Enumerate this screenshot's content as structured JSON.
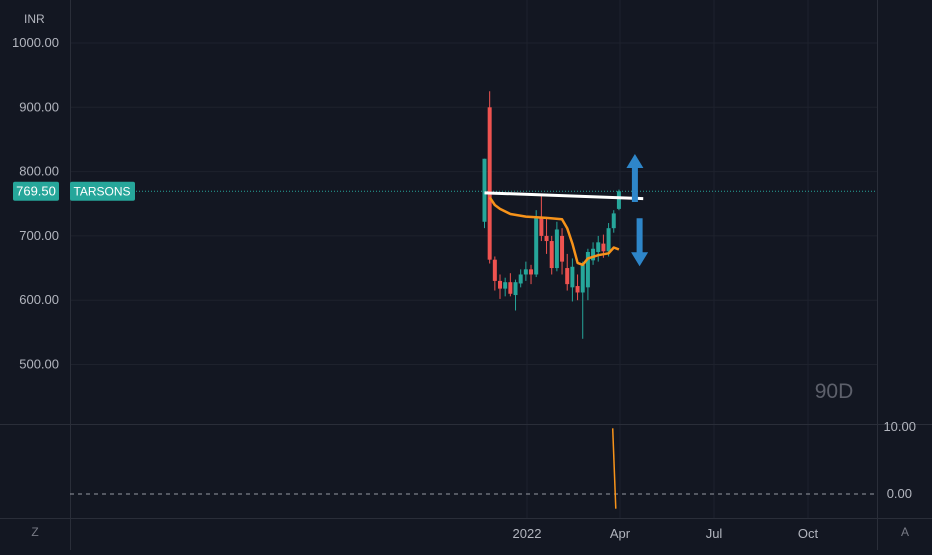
{
  "currency_label": "INR",
  "price_axis": {
    "ticks": [
      "1000.00",
      "900.00",
      "800.00",
      "700.00",
      "600.00",
      "500.00"
    ]
  },
  "last_price": {
    "value_text": "769.50",
    "value": 769.5,
    "symbol": "TARSONS",
    "color": "#26a69a"
  },
  "interval_watermark": "90D",
  "time_axis": {
    "ticks": [
      "2022",
      "Apr",
      "Jul",
      "Oct"
    ]
  },
  "indicator_axis": {
    "ticks": [
      "10.00",
      "0.00"
    ]
  },
  "corner_buttons": {
    "left": "Z",
    "right": "A"
  },
  "colors": {
    "background": "#131722",
    "grid": "#1e222d",
    "up": "#26a69a",
    "down": "#ef5350",
    "ma": "#f7931a",
    "trendline": "#ffffff",
    "arrow": "#2e86c9",
    "axis_text": "#b2b5be"
  },
  "chart_data": {
    "type": "candlestick",
    "symbol": "TARSONS",
    "currency": "INR",
    "ylim": [
      430,
      1030
    ],
    "x_tick_labels": [
      "2022",
      "Apr",
      "Jul",
      "Oct"
    ],
    "candles": [
      {
        "x": 0,
        "open": 722,
        "high": 820,
        "low": 712,
        "close": 820
      },
      {
        "x": 1,
        "open": 900,
        "high": 925,
        "low": 657,
        "close": 663
      },
      {
        "x": 2,
        "open": 663,
        "high": 668,
        "low": 615,
        "close": 630
      },
      {
        "x": 3,
        "open": 630,
        "high": 640,
        "low": 602,
        "close": 618
      },
      {
        "x": 4,
        "open": 618,
        "high": 635,
        "low": 606,
        "close": 628
      },
      {
        "x": 5,
        "open": 628,
        "high": 642,
        "low": 606,
        "close": 610
      },
      {
        "x": 6,
        "open": 608,
        "high": 632,
        "low": 584,
        "close": 628
      },
      {
        "x": 7,
        "open": 626,
        "high": 648,
        "low": 620,
        "close": 640
      },
      {
        "x": 8,
        "open": 640,
        "high": 660,
        "low": 630,
        "close": 648
      },
      {
        "x": 9,
        "open": 648,
        "high": 655,
        "low": 625,
        "close": 640
      },
      {
        "x": 10,
        "open": 640,
        "high": 740,
        "low": 636,
        "close": 730
      },
      {
        "x": 11,
        "open": 730,
        "high": 762,
        "low": 692,
        "close": 700
      },
      {
        "x": 12,
        "open": 700,
        "high": 728,
        "low": 672,
        "close": 692
      },
      {
        "x": 13,
        "open": 692,
        "high": 700,
        "low": 640,
        "close": 650
      },
      {
        "x": 14,
        "open": 650,
        "high": 722,
        "low": 645,
        "close": 710
      },
      {
        "x": 15,
        "open": 700,
        "high": 712,
        "low": 640,
        "close": 660
      },
      {
        "x": 16,
        "open": 650,
        "high": 672,
        "low": 615,
        "close": 625
      },
      {
        "x": 17,
        "open": 620,
        "high": 665,
        "low": 598,
        "close": 652
      },
      {
        "x": 18,
        "open": 622,
        "high": 640,
        "low": 600,
        "close": 612
      },
      {
        "x": 19,
        "open": 612,
        "high": 660,
        "low": 540,
        "close": 655
      },
      {
        "x": 20,
        "open": 620,
        "high": 680,
        "low": 600,
        "close": 675
      },
      {
        "x": 21,
        "open": 662,
        "high": 690,
        "low": 655,
        "close": 680
      },
      {
        "x": 22,
        "open": 675,
        "high": 700,
        "low": 660,
        "close": 690
      },
      {
        "x": 23,
        "open": 688,
        "high": 702,
        "low": 666,
        "close": 676
      },
      {
        "x": 24,
        "open": 676,
        "high": 720,
        "low": 668,
        "close": 712
      },
      {
        "x": 25,
        "open": 712,
        "high": 740,
        "low": 705,
        "close": 735
      },
      {
        "x": 26,
        "open": 742,
        "high": 772,
        "low": 740,
        "close": 769.5
      }
    ],
    "moving_average": [
      {
        "x": 1,
        "y": 760
      },
      {
        "x": 2,
        "y": 748
      },
      {
        "x": 3,
        "y": 742
      },
      {
        "x": 5,
        "y": 734
      },
      {
        "x": 8,
        "y": 730
      },
      {
        "x": 12,
        "y": 728
      },
      {
        "x": 15,
        "y": 726
      },
      {
        "x": 16,
        "y": 712
      },
      {
        "x": 17,
        "y": 688
      },
      {
        "x": 18,
        "y": 658
      },
      {
        "x": 19,
        "y": 655
      },
      {
        "x": 20,
        "y": 665
      },
      {
        "x": 22,
        "y": 670
      },
      {
        "x": 24,
        "y": 673
      },
      {
        "x": 25,
        "y": 682
      },
      {
        "x": 26,
        "y": 679
      }
    ],
    "trendline": [
      {
        "x": 0,
        "y": 767
      },
      {
        "x": 30.7,
        "y": 758
      }
    ],
    "annotations": [
      {
        "type": "arrow",
        "direction": "up",
        "x": 29.1,
        "price": 790
      },
      {
        "type": "arrow",
        "direction": "down",
        "x": 30.0,
        "price": 690
      }
    ],
    "indicator": {
      "ylim": [
        -2.2,
        10.6
      ],
      "zero_line": 0,
      "line": [
        {
          "x": 24.8,
          "y": 9.8
        },
        {
          "x": 25.4,
          "y": -2.2
        }
      ]
    }
  }
}
